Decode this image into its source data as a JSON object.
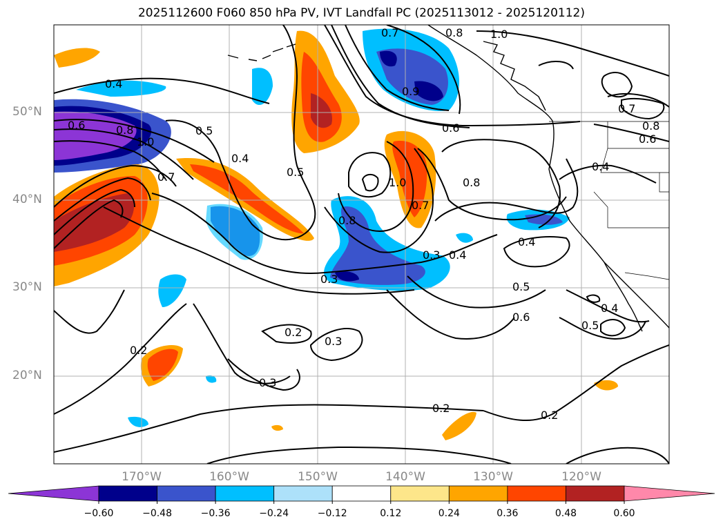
{
  "title": "2025112600 F060 850 hPa PV, IVT Landfall PC (2025113012 - 2025120112)",
  "map": {
    "lat_labels": [
      "50°N",
      "40°N",
      "30°N",
      "20°N"
    ],
    "lon_labels": [
      "170°W",
      "160°W",
      "150°W",
      "140°W",
      "130°W",
      "120°W"
    ]
  },
  "contour_labels": [
    {
      "text": "0.4"
    },
    {
      "text": "0.6"
    },
    {
      "text": "0.8"
    },
    {
      "text": "1.0"
    },
    {
      "text": "0.7"
    },
    {
      "text": "0.5"
    },
    {
      "text": "0.4"
    },
    {
      "text": "0.5"
    },
    {
      "text": "0.7"
    },
    {
      "text": "0.8"
    },
    {
      "text": "0.9"
    },
    {
      "text": "1.0"
    },
    {
      "text": "0.6"
    },
    {
      "text": "1.0"
    },
    {
      "text": "0.7"
    },
    {
      "text": "0.8"
    },
    {
      "text": "0.8"
    },
    {
      "text": "0.3"
    },
    {
      "text": "0.3"
    },
    {
      "text": "0.4"
    },
    {
      "text": "0.4"
    },
    {
      "text": "0.7"
    },
    {
      "text": "0.8"
    },
    {
      "text": "0.6"
    },
    {
      "text": "0.4"
    },
    {
      "text": "0.5"
    },
    {
      "text": "0.6"
    },
    {
      "text": "0.5"
    },
    {
      "text": "0.4"
    },
    {
      "text": "0.2"
    },
    {
      "text": "0.2"
    },
    {
      "text": "0.3"
    },
    {
      "text": "0.3"
    },
    {
      "text": "0.2"
    },
    {
      "text": "0.2"
    }
  ],
  "colorbar": {
    "ticks": [
      "−0.60",
      "−0.48",
      "−0.36",
      "−0.24",
      "−0.12",
      "0.12",
      "0.24",
      "0.36",
      "0.48",
      "0.60"
    ],
    "colors": [
      "#8c35d6",
      "#00008b",
      "#3a54cc",
      "#00bfff",
      "#ade1fa",
      "#ffffff",
      "#fde68a",
      "#ffa500",
      "#ff4500",
      "#b22222",
      "#ff88aa"
    ]
  },
  "colors": {
    "land_line": "#000000",
    "grid": "#b0b0b0"
  }
}
